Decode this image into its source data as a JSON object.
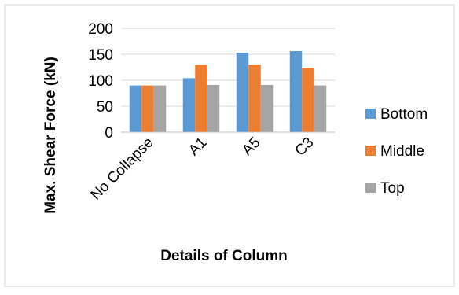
{
  "chart_data": {
    "type": "bar",
    "title": "",
    "xlabel": "Details of Column",
    "ylabel": "Max. Shear Force (kN)",
    "ylim": [
      0,
      200
    ],
    "yticks": [
      0,
      50,
      100,
      150,
      200
    ],
    "grid": "horizontal",
    "legend_position": "right",
    "categories": [
      "No Collapse",
      "A1",
      "A5",
      "C3"
    ],
    "series": [
      {
        "name": "Bottom",
        "color": "#5B9BD5",
        "values": [
          90,
          104,
          153,
          156
        ]
      },
      {
        "name": "Middle",
        "color": "#ED7D31",
        "values": [
          90,
          130,
          130,
          124
        ]
      },
      {
        "name": "Top",
        "color": "#A5A5A5",
        "values": [
          90,
          91,
          91,
          90
        ]
      }
    ]
  }
}
